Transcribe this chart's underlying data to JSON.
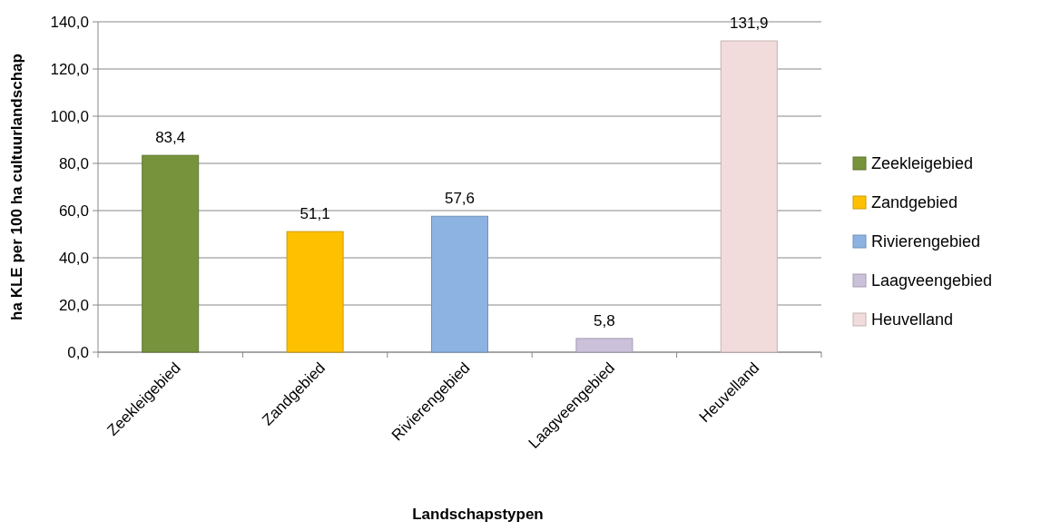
{
  "chart_data": {
    "type": "bar",
    "xlabel": "Landschapstypen",
    "ylabel": "ha KLE per 100 ha cultuurlandschap",
    "categories": [
      "Zeekleigebied",
      "Zandgebied",
      "Rivierengebied",
      "Laagveengebied",
      "Heuvelland"
    ],
    "series": [
      {
        "name": "Zeekleigebied",
        "color": "#77933c",
        "values": [
          83.4,
          null,
          null,
          null,
          null
        ],
        "value_labels": [
          "83,4",
          null,
          null,
          null,
          null
        ]
      },
      {
        "name": "Zandgebied",
        "color": "#ffc000",
        "values": [
          null,
          51.1,
          null,
          null,
          null
        ],
        "value_labels": [
          null,
          "51,1",
          null,
          null,
          null
        ]
      },
      {
        "name": "Rivierengebied",
        "color": "#8db3e2",
        "values": [
          null,
          null,
          57.6,
          null,
          null
        ],
        "value_labels": [
          null,
          null,
          "57,6",
          null,
          null
        ]
      },
      {
        "name": "Laagveengebied",
        "color": "#ccc1da",
        "values": [
          null,
          null,
          null,
          5.8,
          null
        ],
        "value_labels": [
          null,
          null,
          null,
          "5,8",
          null
        ]
      },
      {
        "name": "Heuvelland",
        "color": "#f2dcdb",
        "values": [
          null,
          null,
          null,
          null,
          131.9
        ],
        "value_labels": [
          null,
          null,
          null,
          null,
          "131,9"
        ]
      }
    ],
    "ylim": [
      0,
      140
    ],
    "yticks": [
      {
        "value": 0,
        "label": "0,0"
      },
      {
        "value": 20,
        "label": "20,0"
      },
      {
        "value": 40,
        "label": "40,0"
      },
      {
        "value": 60,
        "label": "60,0"
      },
      {
        "value": 80,
        "label": "80,0"
      },
      {
        "value": 100,
        "label": "100,0"
      },
      {
        "value": 120,
        "label": "120,0"
      },
      {
        "value": 140,
        "label": "140,0"
      }
    ],
    "grid": "y",
    "legend": "right"
  }
}
